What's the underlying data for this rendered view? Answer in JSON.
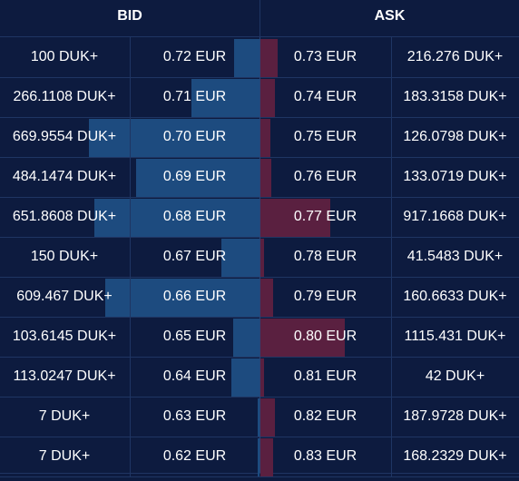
{
  "header": {
    "bid_label": "BID",
    "ask_label": "ASK"
  },
  "colors": {
    "background": "#0d1b3f",
    "bid_bar": "#1d4b7f",
    "ask_bar": "#5a2040",
    "grid": "#1f3563"
  },
  "order_book": {
    "bids": [
      {
        "qty": "100 DUK+",
        "price": "0.72 EUR",
        "depth": 0.098
      },
      {
        "qty": "266.1108 DUK+",
        "price": "0.71 EUR",
        "depth": 0.262
      },
      {
        "qty": "669.9554 DUK+",
        "price": "0.70 EUR",
        "depth": 0.657
      },
      {
        "qty": "484.1474 DUK+",
        "price": "0.69 EUR",
        "depth": 0.476
      },
      {
        "qty": "651.8608 DUK+",
        "price": "0.68 EUR",
        "depth": 0.636
      },
      {
        "qty": "150 DUK+",
        "price": "0.67 EUR",
        "depth": 0.147
      },
      {
        "qty": "609.467 DUK+",
        "price": "0.66 EUR",
        "depth": 0.594
      },
      {
        "qty": "103.6145 DUK+",
        "price": "0.65 EUR",
        "depth": 0.101
      },
      {
        "qty": "113.0247 DUK+",
        "price": "0.64 EUR",
        "depth": 0.108
      },
      {
        "qty": "7 DUK+",
        "price": "0.63 EUR",
        "depth": 0.007
      },
      {
        "qty": "7 DUK+",
        "price": "0.62 EUR",
        "depth": 0.007
      }
    ],
    "asks": [
      {
        "price": "0.73 EUR",
        "qty": "216.276 DUK+",
        "depth": 0.066
      },
      {
        "price": "0.74 EUR",
        "qty": "183.3158 DUK+",
        "depth": 0.056
      },
      {
        "price": "0.75 EUR",
        "qty": "126.0798 DUK+",
        "depth": 0.038
      },
      {
        "price": "0.76 EUR",
        "qty": "133.0719 DUK+",
        "depth": 0.042
      },
      {
        "price": "0.77 EUR",
        "qty": "917.1668 DUK+",
        "depth": 0.269
      },
      {
        "price": "0.78 EUR",
        "qty": "41.5483 DUK+",
        "depth": 0.014
      },
      {
        "price": "0.79 EUR",
        "qty": "160.6633 DUK+",
        "depth": 0.049
      },
      {
        "price": "0.80 EUR",
        "qty": "1115.431 DUK+",
        "depth": 0.325
      },
      {
        "price": "0.81 EUR",
        "qty": "42 DUK+",
        "depth": 0.014
      },
      {
        "price": "0.82 EUR",
        "qty": "187.9728 DUK+",
        "depth": 0.056
      },
      {
        "price": "0.83 EUR",
        "qty": "168.2329 DUK+",
        "depth": 0.049
      }
    ]
  }
}
